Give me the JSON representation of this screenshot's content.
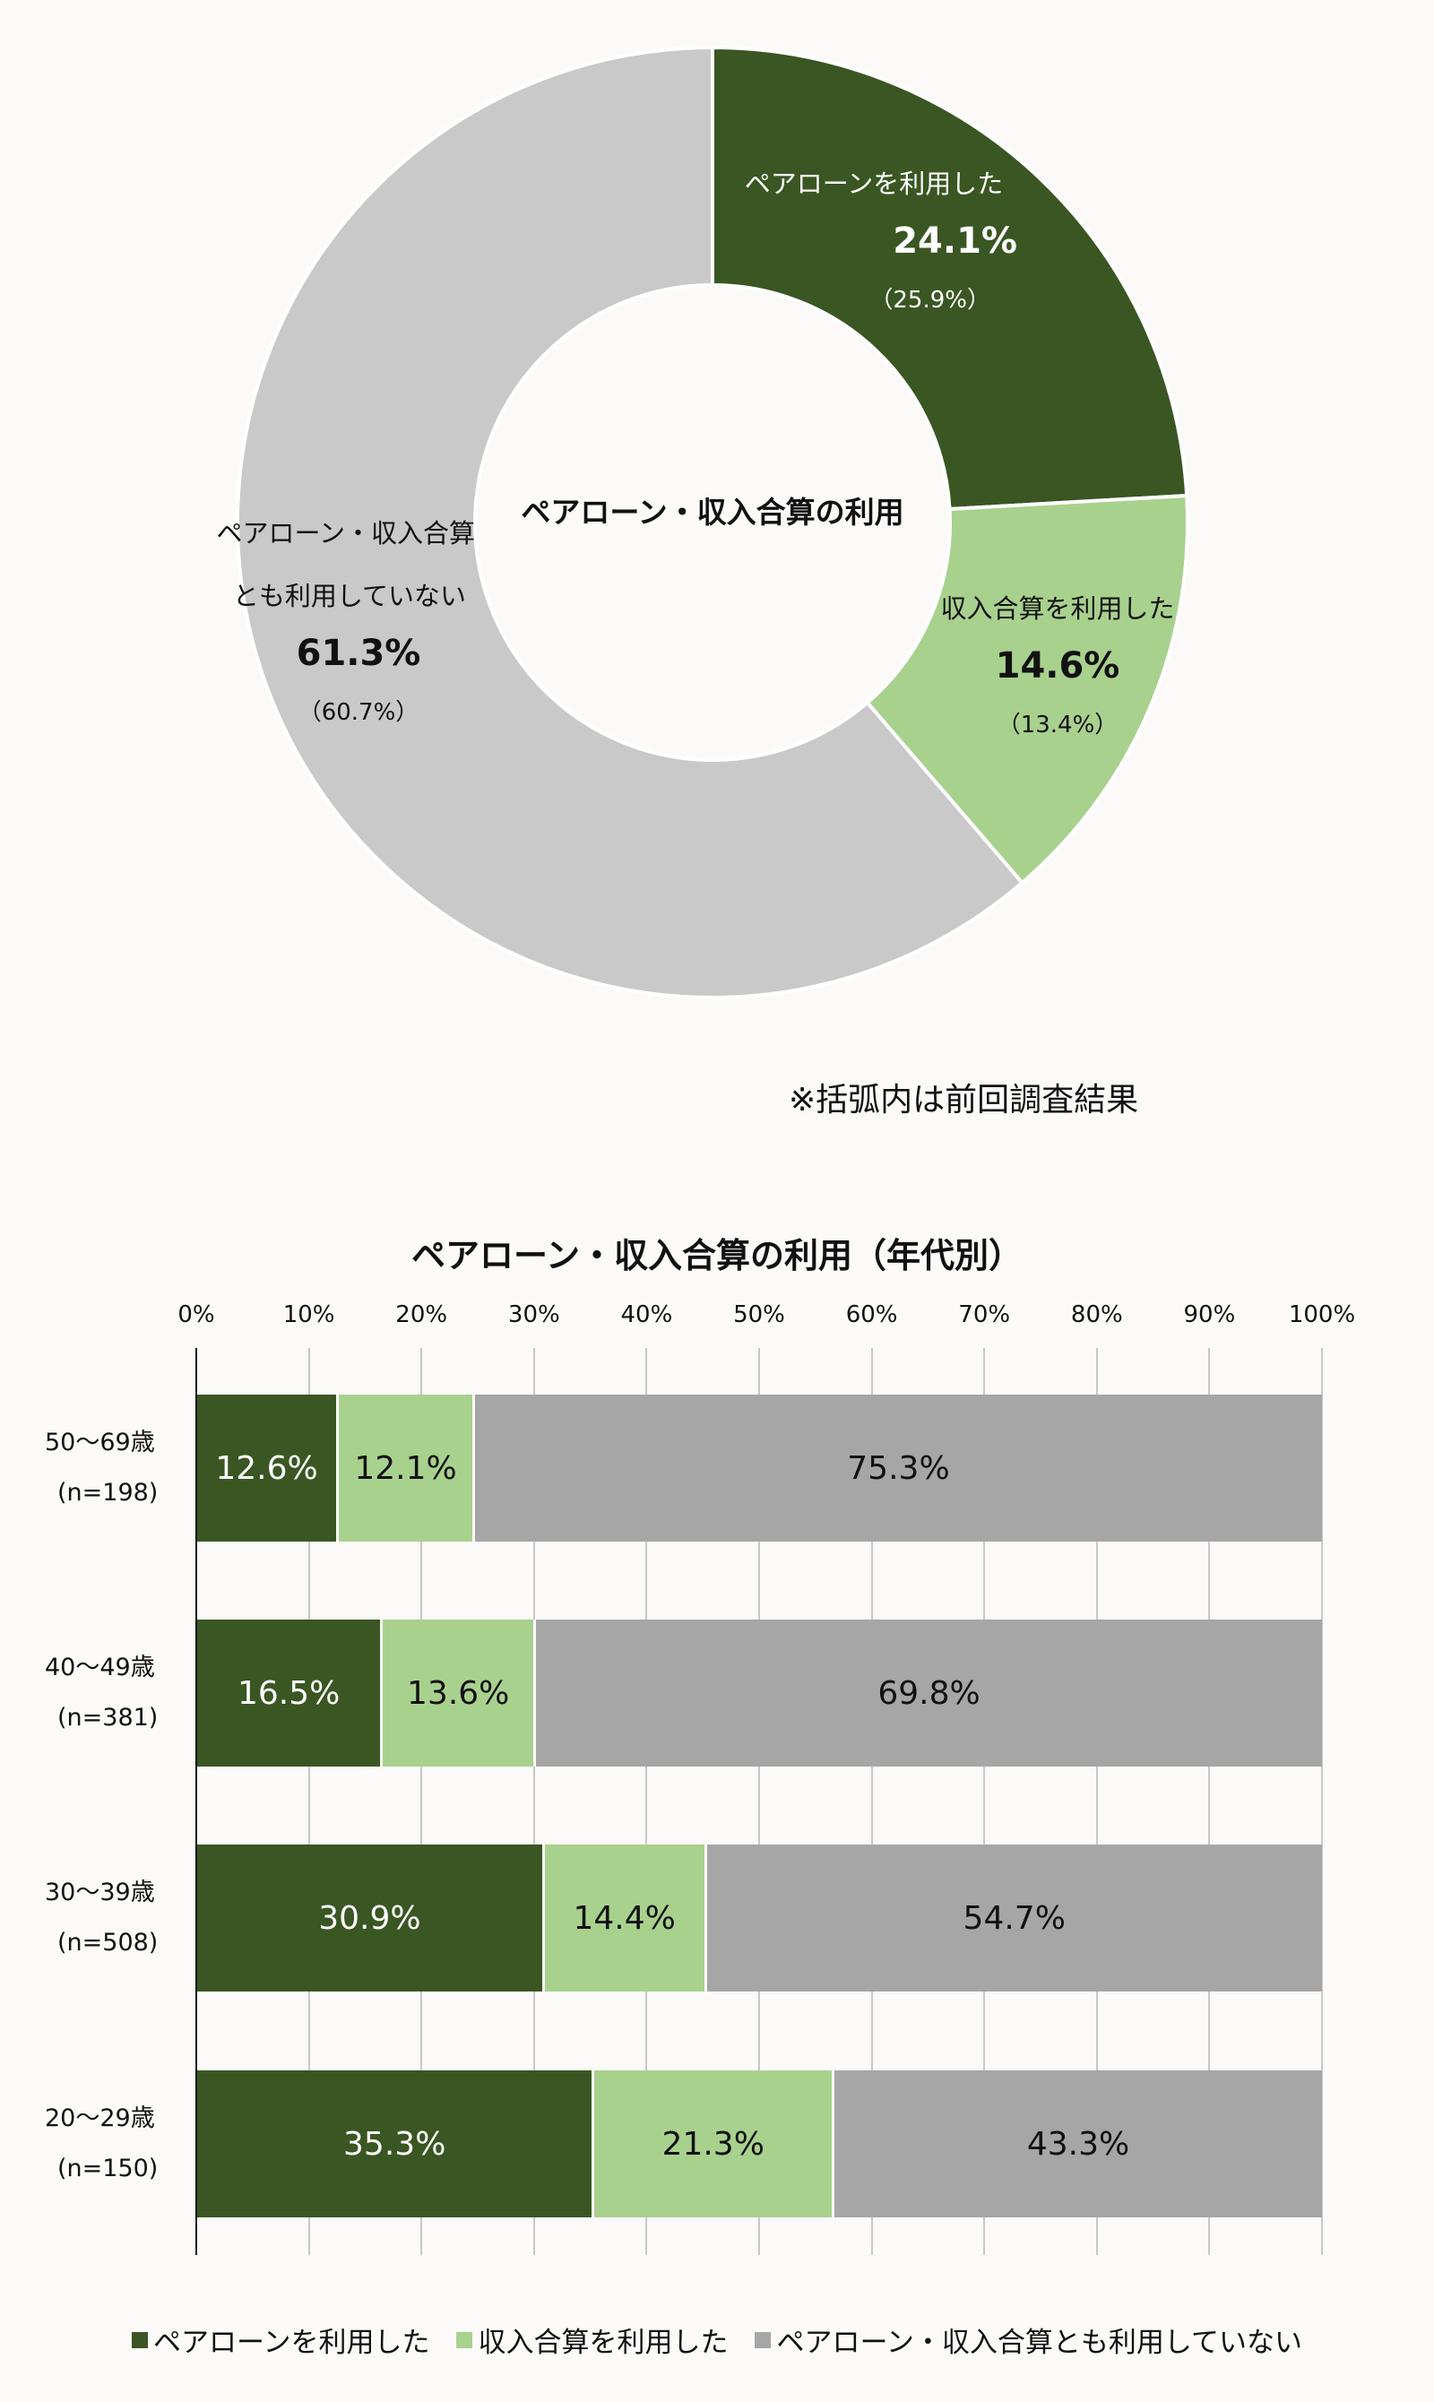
{
  "colors": {
    "pair_loan": "#3a5623",
    "income_combined": "#a9d18e",
    "neither_donut": "#c9c9c9",
    "neither_bar": "#a6a6a6",
    "background": "#fbfaf8"
  },
  "donut": {
    "center_title": "ペアローン・収入合算の利用",
    "segments": [
      {
        "label": "ペアローンを利用した",
        "value": "24.1%",
        "previous": "（25.9%）"
      },
      {
        "label": "収入合算を利用した",
        "value": "14.6%",
        "previous": "（13.4%）"
      },
      {
        "label_line1": "ペアローン・収入合算",
        "label_line2": "とも利用していない",
        "value": "61.3%",
        "previous": "（60.7%）"
      }
    ],
    "note": "※括弧内は前回調査結果"
  },
  "bar_chart": {
    "title": "ペアローン・収入合算の利用（年代別）",
    "ticks": [
      "0%",
      "10%",
      "20%",
      "30%",
      "40%",
      "50%",
      "60%",
      "70%",
      "80%",
      "90%",
      "100%"
    ],
    "rows": [
      {
        "age": "50〜69歳",
        "n": "(n=198)",
        "values": [
          "12.6%",
          "12.1%",
          "75.3%"
        ]
      },
      {
        "age": "40〜49歳",
        "n": "(n=381)",
        "values": [
          "16.5%",
          "13.6%",
          "69.8%"
        ]
      },
      {
        "age": "30〜39歳",
        "n": "(n=508)",
        "values": [
          "30.9%",
          "14.4%",
          "54.7%"
        ]
      },
      {
        "age": "20〜29歳",
        "n": "(n=150)",
        "values": [
          "35.3%",
          "21.3%",
          "43.3%"
        ]
      }
    ],
    "legend": [
      "ペアローンを利用した",
      "収入合算を利用した",
      "ペアローン・収入合算とも利用していない"
    ]
  },
  "chart_data": [
    {
      "type": "pie",
      "title": "ペアローン・収入合算の利用",
      "categories": [
        "ペアローンを利用した",
        "収入合算を利用した",
        "ペアローン・収入合算とも利用していない"
      ],
      "values": [
        24.1,
        14.6,
        61.3
      ],
      "previous_values": [
        25.9,
        13.4,
        60.7
      ],
      "donut": true,
      "annotations": [
        "※括弧内は前回調査結果"
      ]
    },
    {
      "type": "bar",
      "orientation": "horizontal",
      "stacked": true,
      "title": "ペアローン・収入合算の利用（年代別）",
      "categories": [
        "50〜69歳 (n=198)",
        "40〜49歳 (n=381)",
        "30〜39歳 (n=508)",
        "20〜29歳 (n=150)"
      ],
      "series": [
        {
          "name": "ペアローンを利用した",
          "values": [
            12.6,
            16.5,
            30.9,
            35.3
          ]
        },
        {
          "name": "収入合算を利用した",
          "values": [
            12.1,
            13.6,
            14.4,
            21.3
          ]
        },
        {
          "name": "ペアローン・収入合算とも利用していない",
          "values": [
            75.3,
            69.8,
            54.7,
            43.3
          ]
        }
      ],
      "xlabel": "",
      "ylabel": "",
      "xlim": [
        0,
        100
      ],
      "grid": true,
      "legend_position": "bottom"
    }
  ]
}
